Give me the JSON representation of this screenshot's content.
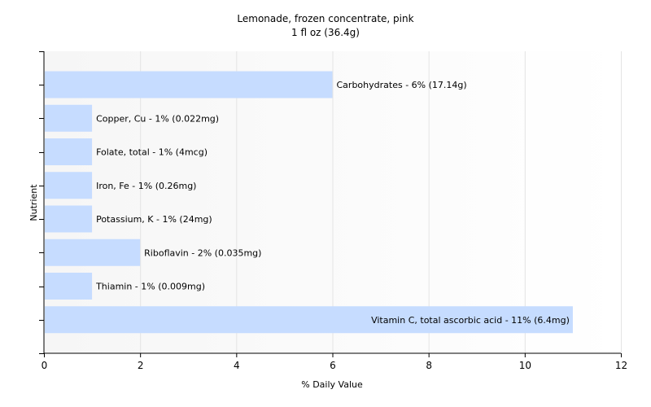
{
  "chart_data": {
    "type": "bar",
    "orientation": "horizontal",
    "title": "Lemonade, frozen concentrate, pink",
    "subtitle": "1 fl oz (36.4g)",
    "xlabel": "% Daily Value",
    "ylabel": "Nutrient",
    "xlim": [
      0,
      12
    ],
    "xticks": [
      0,
      2,
      4,
      6,
      8,
      10,
      12
    ],
    "grid": true,
    "bar_color": "#c6dcff",
    "categories": [
      "Carbohydrates",
      "Copper, Cu",
      "Folate, total",
      "Iron, Fe",
      "Potassium, K",
      "Riboflavin",
      "Thiamin",
      "Vitamin C, total ascorbic acid"
    ],
    "values": [
      6,
      1,
      1,
      1,
      1,
      2,
      1,
      11
    ],
    "labels": [
      "Carbohydrates - 6% (17.14g)",
      "Copper, Cu - 1% (0.022mg)",
      "Folate, total - 1% (4mcg)",
      "Iron, Fe - 1% (0.26mg)",
      "Potassium, K - 1% (24mg)",
      "Riboflavin - 2% (0.035mg)",
      "Thiamin - 1% (0.009mg)",
      "Vitamin C, total ascorbic acid - 11% (6.4mg)"
    ]
  }
}
